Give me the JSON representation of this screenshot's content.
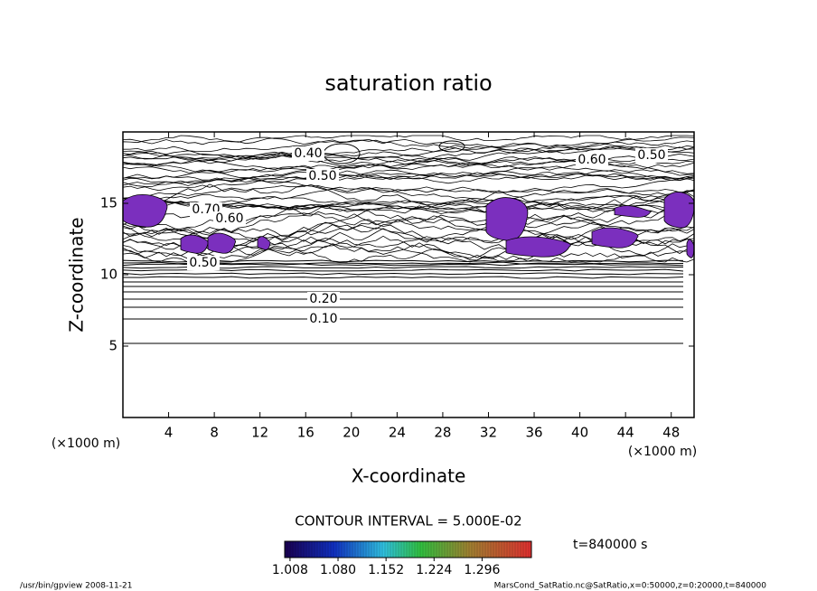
{
  "chart_data": {
    "type": "contour",
    "title": "saturation ratio",
    "x_label": "X-coordinate",
    "y_label": "Z-coordinate",
    "x_unit": "(×1000 m)",
    "y_unit": "(×1000 m)",
    "xlim": [
      0,
      50
    ],
    "xticks": [
      4,
      8,
      12,
      16,
      20,
      24,
      28,
      32,
      36,
      40,
      44,
      48
    ],
    "ylim": [
      0,
      20
    ],
    "yticks": [
      5,
      10,
      15
    ],
    "contour_interval": "CONTOUR INTERVAL = 5.000E-02",
    "contour_labels": [
      {
        "value": 0.4,
        "label": "0.40"
      },
      {
        "value": 0.5,
        "label": "0.50"
      },
      {
        "value": 0.7,
        "label": "0.70"
      },
      {
        "value": 0.6,
        "label": "0.60"
      },
      {
        "value": 0.5,
        "label": "0.50"
      },
      {
        "value": 0.6,
        "label": "0.60"
      },
      {
        "value": 0.5,
        "label": "0.50"
      },
      {
        "value": 0.2,
        "label": "0.20"
      },
      {
        "value": 0.1,
        "label": "0.10"
      }
    ],
    "shade_color": "#7b2fbe",
    "colorbar_lim": [
      1.0,
      1.37
    ],
    "colorbar_ticks": [
      1.008,
      {
        "value": 1.08,
        "label": "1.080"
      },
      1.152,
      1.224,
      1.296
    ],
    "time_label": "t=840000 s",
    "footer_left": "/usr/bin/gpview   2008-11-21",
    "footer_right": "MarsCond_SatRatio.nc@SatRatio,x=0:50000,z=0:20000,t=840000"
  }
}
